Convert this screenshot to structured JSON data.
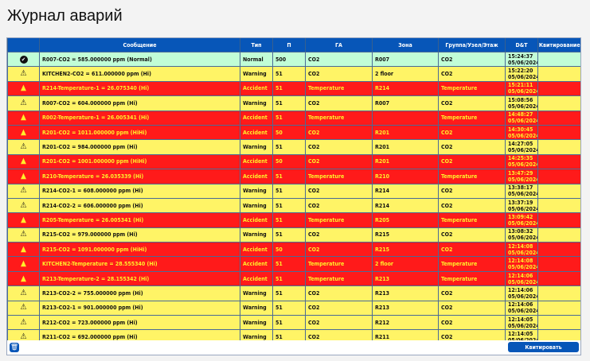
{
  "title": "Журнал аварий",
  "columns": [
    "",
    "Сообщение",
    "Тип",
    "П",
    "ГА",
    "Зона",
    "Группа/Узел/Этаж",
    "D&T",
    "Квитирование"
  ],
  "colors": {
    "normal": "#c1fdd7",
    "warning": "#fff466",
    "accident": "#ff1a1a",
    "header": "#0756b8"
  },
  "rows": [
    {
      "icon": "check-circle-icon",
      "status": "normal",
      "message": "R007-CO2 = 585.000000 ppm (Normal)",
      "type": "Normal",
      "p": "500",
      "ga": "CO2",
      "zone": "R007",
      "group": "CO2",
      "time": "15:24:37",
      "date": "05/06/2024",
      "ack": ""
    },
    {
      "icon": "warning-outline-icon",
      "status": "warning",
      "message": "KITCHEN2-CO2 = 611.000000 ppm (Hi)",
      "type": "Warning",
      "p": "51",
      "ga": "CO2",
      "zone": "2 floor",
      "group": "CO2",
      "time": "15:22:20",
      "date": "05/06/2024",
      "ack": ""
    },
    {
      "icon": "warning-filled-icon",
      "status": "accident",
      "message": "R214-Temperature-1 = 26.075340 (Hi)",
      "type": "Accident",
      "p": "51",
      "ga": "Temperature",
      "zone": "R214",
      "group": "Temperature",
      "time": "15:21:11",
      "date": "05/06/2024",
      "ack": ""
    },
    {
      "icon": "warning-outline-icon",
      "status": "warning",
      "message": "R007-CO2 = 604.000000 ppm (Hi)",
      "type": "Warning",
      "p": "51",
      "ga": "CO2",
      "zone": "R007",
      "group": "CO2",
      "time": "15:08:56",
      "date": "05/06/2024",
      "ack": ""
    },
    {
      "icon": "warning-filled-icon",
      "status": "accident",
      "message": "R002-Temperature-1 = 26.005341 (Hi)",
      "type": "Accident",
      "p": "51",
      "ga": "Temperature",
      "zone": "",
      "group": "Temperature",
      "time": "14:48:27",
      "date": "05/06/2024",
      "ack": ""
    },
    {
      "icon": "warning-filled-icon",
      "status": "accident",
      "message": "R201-CO2 = 1011.000000 ppm (HiHi)",
      "type": "Accident",
      "p": "50",
      "ga": "CO2",
      "zone": "R201",
      "group": "CO2",
      "time": "14:30:45",
      "date": "05/06/2024",
      "ack": ""
    },
    {
      "icon": "warning-outline-icon",
      "status": "warning",
      "message": "R201-CO2 = 984.000000 ppm (Hi)",
      "type": "Warning",
      "p": "51",
      "ga": "CO2",
      "zone": "R201",
      "group": "CO2",
      "time": "14:27:05",
      "date": "05/06/2024",
      "ack": ""
    },
    {
      "icon": "warning-filled-icon",
      "status": "accident",
      "message": "R201-CO2 = 1001.000000 ppm (HiHi)",
      "type": "Accident",
      "p": "50",
      "ga": "CO2",
      "zone": "R201",
      "group": "CO2",
      "time": "14:25:35",
      "date": "05/06/2024",
      "ack": ""
    },
    {
      "icon": "warning-filled-icon",
      "status": "accident",
      "message": "R210-Temperature = 26.035339 (Hi)",
      "type": "Accident",
      "p": "51",
      "ga": "Temperature",
      "zone": "R210",
      "group": "Temperature",
      "time": "13:47:29",
      "date": "05/06/2024",
      "ack": ""
    },
    {
      "icon": "warning-outline-icon",
      "status": "warning",
      "message": "R214-CO2-1 = 608.000000 ppm (Hi)",
      "type": "Warning",
      "p": "51",
      "ga": "CO2",
      "zone": "R214",
      "group": "CO2",
      "time": "13:38:17",
      "date": "05/06/2024",
      "ack": ""
    },
    {
      "icon": "warning-outline-icon",
      "status": "warning",
      "message": "R214-CO2-2 = 606.000000 ppm (Hi)",
      "type": "Warning",
      "p": "51",
      "ga": "CO2",
      "zone": "R214",
      "group": "CO2",
      "time": "13:37:19",
      "date": "05/06/2024",
      "ack": ""
    },
    {
      "icon": "warning-filled-icon",
      "status": "accident",
      "message": "R205-Temperature = 26.005341 (Hi)",
      "type": "Accident",
      "p": "51",
      "ga": "Temperature",
      "zone": "R205",
      "group": "Temperature",
      "time": "13:09:42",
      "date": "05/06/2024",
      "ack": ""
    },
    {
      "icon": "warning-outline-icon",
      "status": "warning",
      "message": "R215-CO2 = 979.000000 ppm (Hi)",
      "type": "Warning",
      "p": "51",
      "ga": "CO2",
      "zone": "R215",
      "group": "CO2",
      "time": "13:08:32",
      "date": "05/06/2024",
      "ack": ""
    },
    {
      "icon": "warning-filled-icon",
      "status": "accident",
      "message": "R215-CO2 = 1091.000000 ppm (HiHi)",
      "type": "Accident",
      "p": "50",
      "ga": "CO2",
      "zone": "R215",
      "group": "CO2",
      "time": "12:14:08",
      "date": "05/06/2024",
      "ack": ""
    },
    {
      "icon": "warning-filled-icon",
      "status": "accident",
      "message": "KITCHEN2-Temperature = 28.555340 (Hi)",
      "type": "Accident",
      "p": "51",
      "ga": "Temperature",
      "zone": "2 floor",
      "group": "Temperature",
      "time": "12:14:08",
      "date": "05/06/2024",
      "ack": ""
    },
    {
      "icon": "warning-filled-icon",
      "status": "accident",
      "message": "R213-Temperature-2 = 28.155342 (Hi)",
      "type": "Accident",
      "p": "51",
      "ga": "Temperature",
      "zone": "R213",
      "group": "Temperature",
      "time": "12:14:06",
      "date": "05/06/2024",
      "ack": ""
    },
    {
      "icon": "warning-outline-icon",
      "status": "warning",
      "message": "R213-CO2-2 = 755.000000 ppm (Hi)",
      "type": "Warning",
      "p": "51",
      "ga": "CO2",
      "zone": "R213",
      "group": "CO2",
      "time": "12:14:06",
      "date": "05/06/2024",
      "ack": ""
    },
    {
      "icon": "warning-outline-icon",
      "status": "warning",
      "message": "R213-CO2-1 = 901.000000 ppm (Hi)",
      "type": "Warning",
      "p": "51",
      "ga": "CO2",
      "zone": "R213",
      "group": "CO2",
      "time": "12:14:06",
      "date": "05/06/2024",
      "ack": ""
    },
    {
      "icon": "warning-outline-icon",
      "status": "warning",
      "message": "R212-CO2 = 723.000000 ppm (Hi)",
      "type": "Warning",
      "p": "51",
      "ga": "CO2",
      "zone": "R212",
      "group": "CO2",
      "time": "12:14:05",
      "date": "05/06/2024",
      "ack": ""
    },
    {
      "icon": "warning-outline-icon",
      "status": "warning",
      "message": "R211-CO2 = 692.000000 ppm (Hi)",
      "type": "Warning",
      "p": "51",
      "ga": "CO2",
      "zone": "R211",
      "group": "CO2",
      "time": "12:14:05",
      "date": "05/06/2024",
      "ack": ""
    }
  ],
  "footer": {
    "ack_button": "Квитировать",
    "trash_icon": "trash-icon"
  }
}
